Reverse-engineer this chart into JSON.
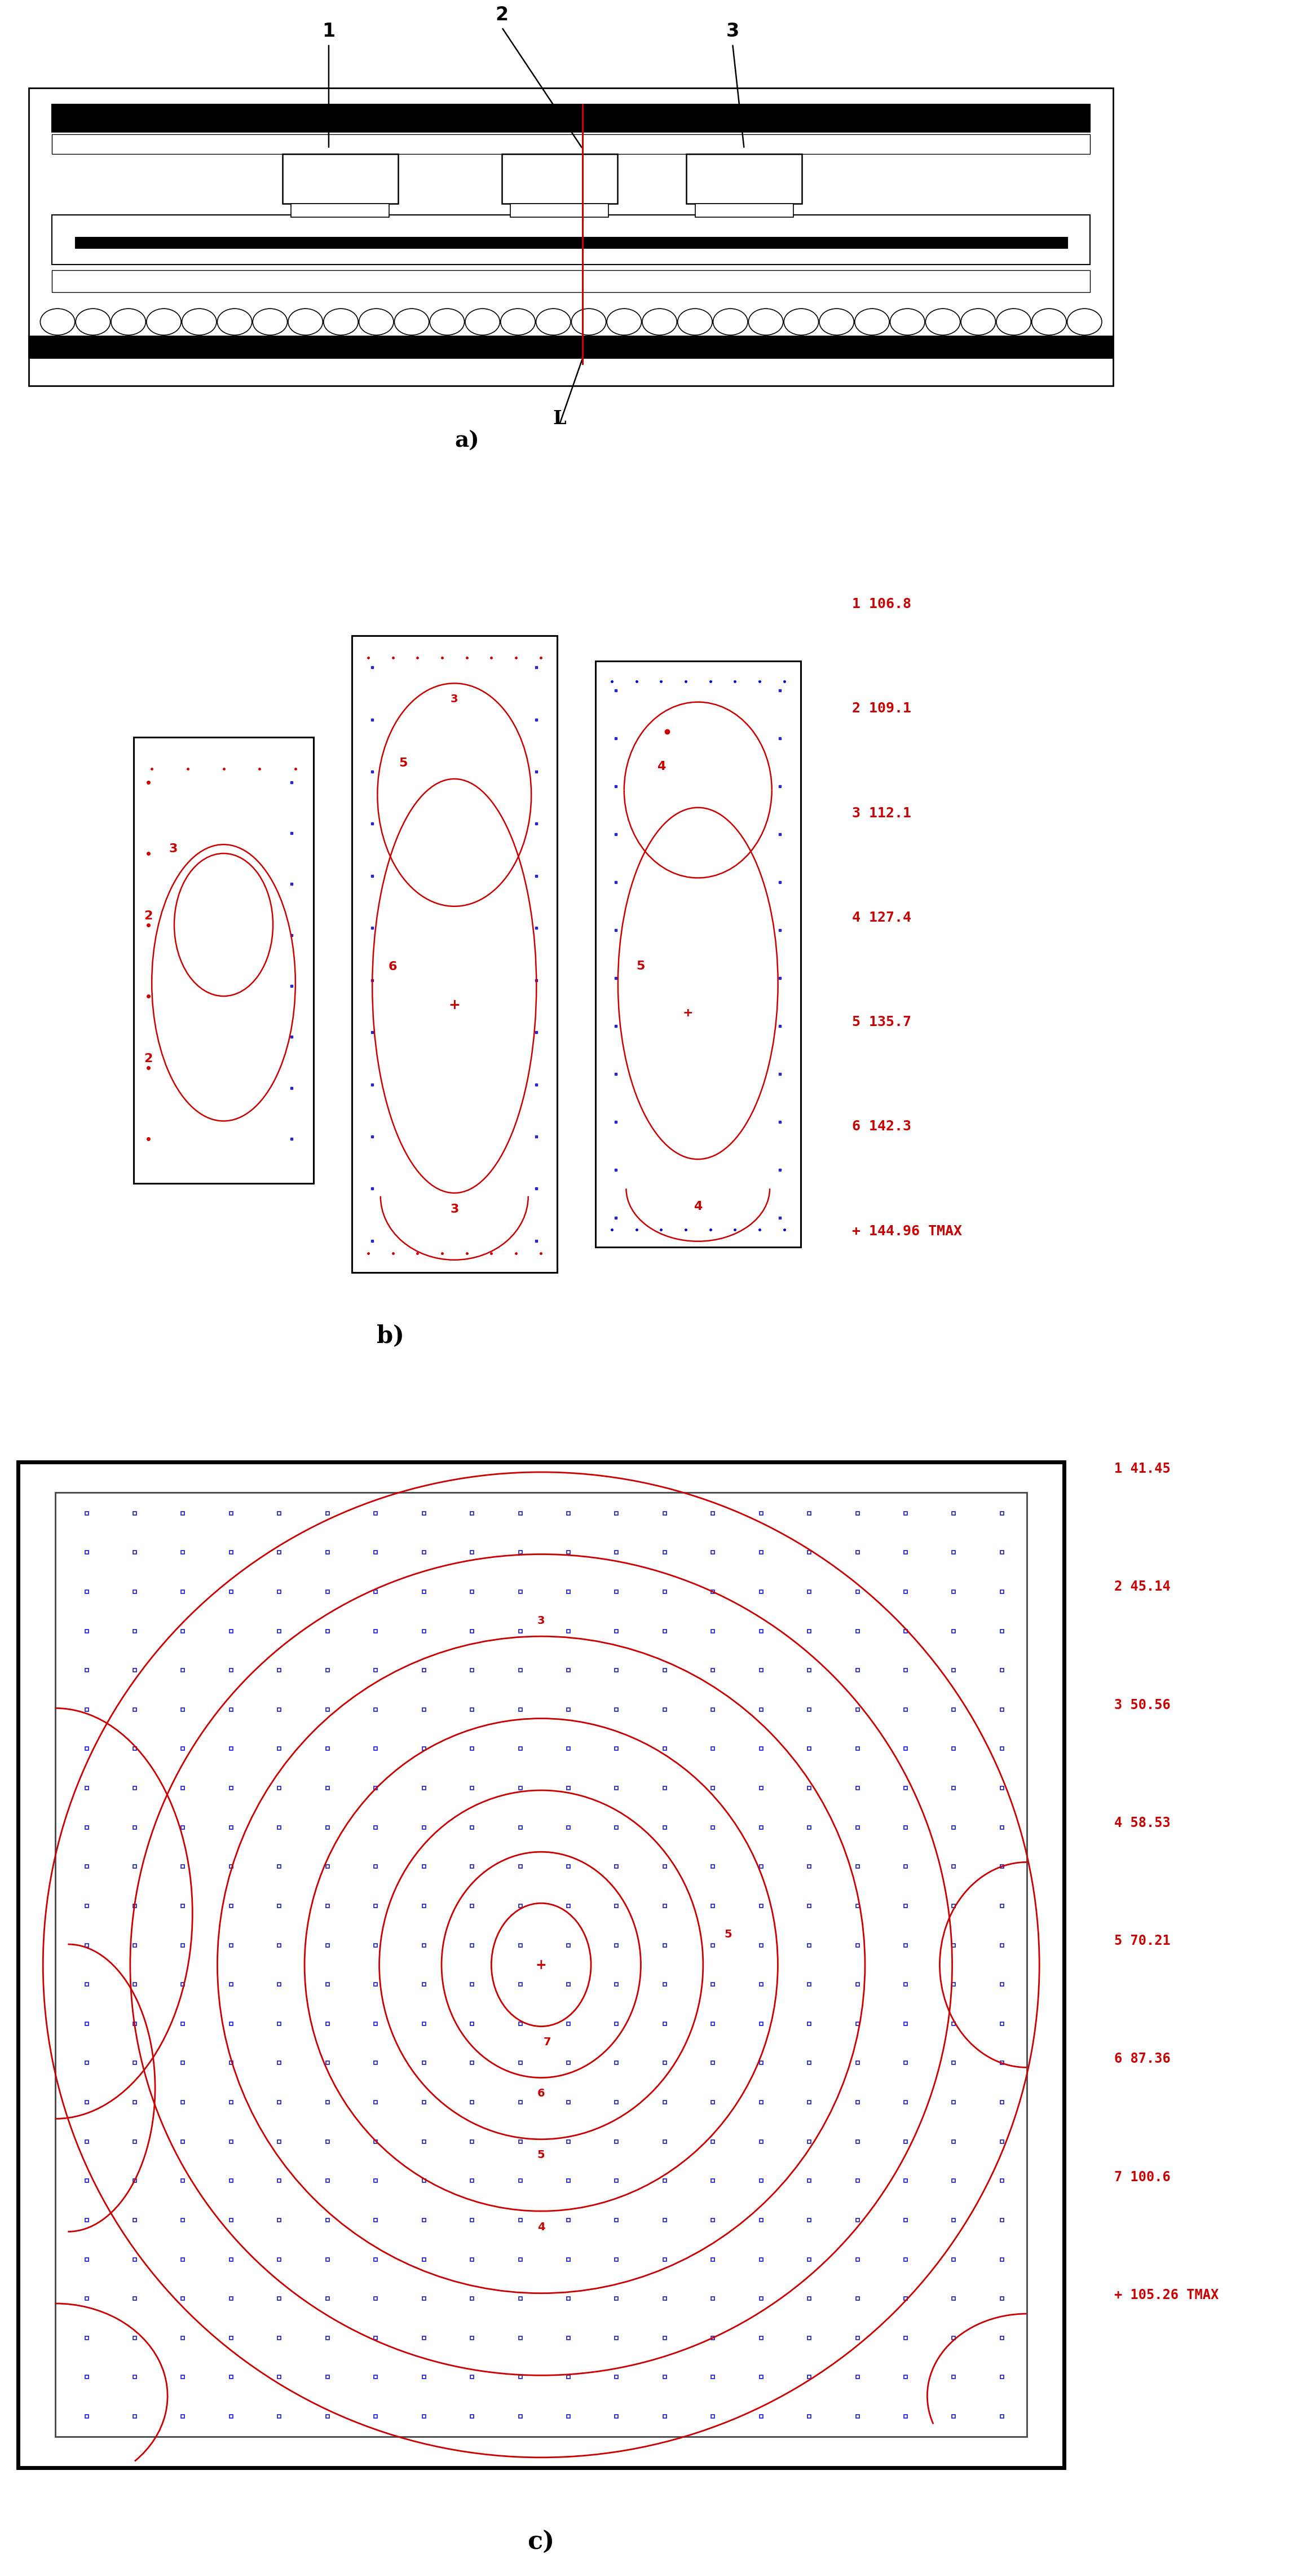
{
  "bg_color": "#ffffff",
  "fig_width": 32.48,
  "fig_height": 47.56,
  "panel_a_label": "a)",
  "panel_b_label": "b)",
  "panel_c_label": "c)",
  "label_L": "L",
  "labels_123": [
    "1",
    "2",
    "3"
  ],
  "legend_b": [
    "1 106.8",
    "2 109.1",
    "3 112.1",
    "4 127.4",
    "5 135.7",
    "6 142.3",
    "+ 144.96 TMAX"
  ],
  "legend_c": [
    "1 41.45",
    "2 45.14",
    "3 50.56",
    "4 58.53",
    "5 70.21",
    "6 87.36",
    "7 100.6",
    "+ 105.26 TMAX"
  ],
  "red": "#cc0000",
  "blue": "#0000cc",
  "black": "#000000",
  "contour_red": "#cc0000"
}
